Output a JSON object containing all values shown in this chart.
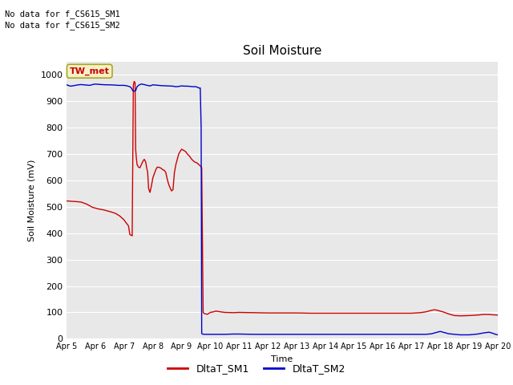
{
  "title": "Soil Moisture",
  "xlabel": "Time",
  "ylabel": "Soil Moisture (mV)",
  "ylim": [
    0,
    1050
  ],
  "yticks": [
    0,
    100,
    200,
    300,
    400,
    500,
    600,
    700,
    800,
    900,
    1000
  ],
  "background_color": "#e8e8e8",
  "annotation_text1": "No data for f_CS615_SM1",
  "annotation_text2": "No data for f_CS615_SM2",
  "legend_box_text": "TW_met",
  "legend_box_color": "#f5f0c8",
  "legend_box_border": "#aaa820",
  "sm1_color": "#cc0000",
  "sm2_color": "#0000cc",
  "sm1_label": "DltaT_SM1",
  "sm2_label": "DltaT_SM2",
  "x_start": 5,
  "x_end": 20,
  "xtick_labels": [
    "Apr 5",
    "Apr 6",
    "Apr 7",
    "Apr 8",
    "Apr 9",
    "Apr 10",
    "Apr 11",
    "Apr 12",
    "Apr 13",
    "Apr 14",
    "Apr 15",
    "Apr 16",
    "Apr 17",
    "Apr 18",
    "Apr 19",
    "Apr 20"
  ],
  "xtick_positions": [
    5,
    6,
    7,
    8,
    9,
    10,
    11,
    12,
    13,
    14,
    15,
    16,
    17,
    18,
    19,
    20
  ],
  "sm1_data": [
    [
      5.0,
      522
    ],
    [
      5.05,
      522
    ],
    [
      5.15,
      521
    ],
    [
      5.3,
      520
    ],
    [
      5.5,
      518
    ],
    [
      5.7,
      510
    ],
    [
      5.9,
      498
    ],
    [
      6.0,
      495
    ],
    [
      6.1,
      492
    ],
    [
      6.3,
      488
    ],
    [
      6.5,
      482
    ],
    [
      6.7,
      475
    ],
    [
      6.85,
      465
    ],
    [
      6.95,
      455
    ],
    [
      7.0,
      450
    ],
    [
      7.05,
      442
    ],
    [
      7.1,
      435
    ],
    [
      7.15,
      428
    ],
    [
      7.2,
      395
    ],
    [
      7.25,
      392
    ],
    [
      7.28,
      390
    ],
    [
      7.32,
      960
    ],
    [
      7.35,
      975
    ],
    [
      7.38,
      970
    ],
    [
      7.4,
      720
    ],
    [
      7.42,
      690
    ],
    [
      7.45,
      660
    ],
    [
      7.5,
      650
    ],
    [
      7.55,
      648
    ],
    [
      7.6,
      660
    ],
    [
      7.65,
      672
    ],
    [
      7.7,
      680
    ],
    [
      7.75,
      670
    ],
    [
      7.78,
      650
    ],
    [
      7.82,
      630
    ],
    [
      7.85,
      570
    ],
    [
      7.88,
      560
    ],
    [
      7.9,
      555
    ],
    [
      7.95,
      580
    ],
    [
      8.0,
      610
    ],
    [
      8.05,
      625
    ],
    [
      8.1,
      640
    ],
    [
      8.15,
      650
    ],
    [
      8.2,
      650
    ],
    [
      8.25,
      648
    ],
    [
      8.3,
      645
    ],
    [
      8.35,
      640
    ],
    [
      8.4,
      638
    ],
    [
      8.45,
      630
    ],
    [
      8.5,
      605
    ],
    [
      8.55,
      585
    ],
    [
      8.6,
      572
    ],
    [
      8.65,
      560
    ],
    [
      8.7,
      565
    ],
    [
      8.75,
      630
    ],
    [
      8.8,
      660
    ],
    [
      8.85,
      680
    ],
    [
      8.9,
      700
    ],
    [
      8.95,
      710
    ],
    [
      9.0,
      718
    ],
    [
      9.05,
      715
    ],
    [
      9.1,
      712
    ],
    [
      9.15,
      708
    ],
    [
      9.2,
      700
    ],
    [
      9.25,
      695
    ],
    [
      9.3,
      688
    ],
    [
      9.35,
      680
    ],
    [
      9.4,
      675
    ],
    [
      9.45,
      670
    ],
    [
      9.5,
      668
    ],
    [
      9.55,
      665
    ],
    [
      9.6,
      660
    ],
    [
      9.65,
      655
    ],
    [
      9.7,
      648
    ],
    [
      9.75,
      100
    ],
    [
      9.8,
      95
    ],
    [
      9.9,
      93
    ],
    [
      10.0,
      100
    ],
    [
      10.1,
      102
    ],
    [
      10.2,
      105
    ],
    [
      10.3,
      103
    ],
    [
      10.5,
      100
    ],
    [
      10.8,
      99
    ],
    [
      11.0,
      100
    ],
    [
      11.5,
      99
    ],
    [
      12.0,
      98
    ],
    [
      12.5,
      98
    ],
    [
      13.0,
      98
    ],
    [
      13.5,
      97
    ],
    [
      14.0,
      97
    ],
    [
      14.5,
      97
    ],
    [
      15.0,
      97
    ],
    [
      15.5,
      97
    ],
    [
      16.0,
      97
    ],
    [
      16.5,
      97
    ],
    [
      17.0,
      97
    ],
    [
      17.3,
      99
    ],
    [
      17.5,
      102
    ],
    [
      17.7,
      108
    ],
    [
      17.8,
      110
    ],
    [
      17.9,
      108
    ],
    [
      18.0,
      105
    ],
    [
      18.1,
      102
    ],
    [
      18.2,
      98
    ],
    [
      18.3,
      94
    ],
    [
      18.5,
      88
    ],
    [
      18.7,
      87
    ],
    [
      19.0,
      88
    ],
    [
      19.3,
      90
    ],
    [
      19.5,
      92
    ],
    [
      19.7,
      92
    ],
    [
      19.8,
      91
    ],
    [
      20.0,
      90
    ]
  ],
  "sm2_data": [
    [
      5.0,
      962
    ],
    [
      5.05,
      960
    ],
    [
      5.1,
      958
    ],
    [
      5.15,
      957
    ],
    [
      5.2,
      958
    ],
    [
      5.3,
      960
    ],
    [
      5.4,
      962
    ],
    [
      5.5,
      963
    ],
    [
      5.6,
      962
    ],
    [
      5.7,
      961
    ],
    [
      5.8,
      960
    ],
    [
      5.9,
      963
    ],
    [
      6.0,
      965
    ],
    [
      6.1,
      964
    ],
    [
      6.2,
      963
    ],
    [
      6.4,
      962
    ],
    [
      6.5,
      962
    ],
    [
      6.7,
      961
    ],
    [
      6.8,
      960
    ],
    [
      7.0,
      960
    ],
    [
      7.1,
      958
    ],
    [
      7.2,
      955
    ],
    [
      7.25,
      950
    ],
    [
      7.3,
      940
    ],
    [
      7.35,
      938
    ],
    [
      7.4,
      940
    ],
    [
      7.45,
      955
    ],
    [
      7.5,
      960
    ],
    [
      7.55,
      963
    ],
    [
      7.6,
      965
    ],
    [
      7.7,
      963
    ],
    [
      7.8,
      960
    ],
    [
      7.9,
      958
    ],
    [
      8.0,
      962
    ],
    [
      8.1,
      961
    ],
    [
      8.2,
      960
    ],
    [
      8.3,
      959
    ],
    [
      8.5,
      958
    ],
    [
      8.7,
      957
    ],
    [
      8.8,
      955
    ],
    [
      8.9,
      956
    ],
    [
      9.0,
      958
    ],
    [
      9.1,
      957
    ],
    [
      9.2,
      957
    ],
    [
      9.3,
      956
    ],
    [
      9.4,
      955
    ],
    [
      9.5,
      955
    ],
    [
      9.55,
      953
    ],
    [
      9.6,
      950
    ],
    [
      9.65,
      950
    ],
    [
      9.68,
      800
    ],
    [
      9.7,
      20
    ],
    [
      9.72,
      18
    ],
    [
      9.8,
      17
    ],
    [
      9.9,
      17
    ],
    [
      10.0,
      17
    ],
    [
      10.2,
      17
    ],
    [
      10.5,
      17
    ],
    [
      10.8,
      18
    ],
    [
      11.0,
      18
    ],
    [
      11.5,
      17
    ],
    [
      12.0,
      17
    ],
    [
      12.5,
      17
    ],
    [
      13.0,
      17
    ],
    [
      13.5,
      17
    ],
    [
      14.0,
      17
    ],
    [
      14.5,
      17
    ],
    [
      15.0,
      17
    ],
    [
      15.5,
      17
    ],
    [
      16.0,
      17
    ],
    [
      16.5,
      17
    ],
    [
      17.0,
      17
    ],
    [
      17.3,
      17
    ],
    [
      17.5,
      17
    ],
    [
      17.7,
      19
    ],
    [
      17.8,
      22
    ],
    [
      17.9,
      25
    ],
    [
      18.0,
      28
    ],
    [
      18.1,
      25
    ],
    [
      18.2,
      22
    ],
    [
      18.3,
      19
    ],
    [
      18.5,
      17
    ],
    [
      18.7,
      15
    ],
    [
      19.0,
      15
    ],
    [
      19.3,
      18
    ],
    [
      19.5,
      22
    ],
    [
      19.7,
      25
    ],
    [
      19.8,
      22
    ],
    [
      19.9,
      18
    ],
    [
      20.0,
      15
    ]
  ]
}
